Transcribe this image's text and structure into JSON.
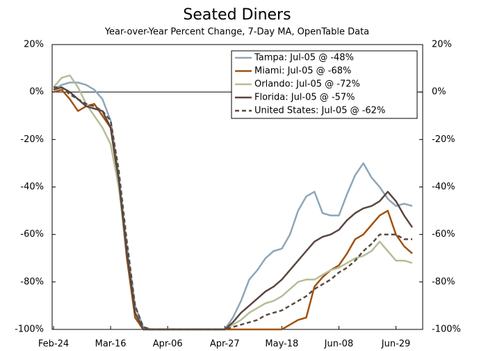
{
  "chart_data": {
    "type": "line",
    "title": "Seated Diners",
    "subtitle": "Year-over-Year Percent Change, 7-Day MA, OpenTable Data",
    "categories": [
      "Feb-24",
      null,
      null,
      null,
      null,
      null,
      null,
      "Mar-16",
      null,
      null,
      null,
      null,
      null,
      null,
      "Apr-06",
      null,
      null,
      null,
      null,
      null,
      null,
      "Apr-27",
      null,
      null,
      null,
      null,
      null,
      null,
      "May-18",
      null,
      null,
      null,
      null,
      null,
      null,
      "Jun-08",
      null,
      null,
      null,
      null,
      null,
      null,
      "Jun-29",
      null,
      null
    ],
    "ylim": [
      -100,
      20
    ],
    "yticks": [
      {
        "value": -100,
        "label": "-100%"
      },
      {
        "value": -80,
        "label": "-80%"
      },
      {
        "value": -60,
        "label": "-60%"
      },
      {
        "value": -40,
        "label": "-40%"
      },
      {
        "value": -20,
        "label": "-20%"
      },
      {
        "value": 0,
        "label": "0%"
      },
      {
        "value": 20,
        "label": "20%"
      }
    ],
    "y2lim": [
      -100,
      20
    ],
    "y2ticks": [
      {
        "value": -100,
        "label": "-100%"
      },
      {
        "value": -80,
        "label": "-80%"
      },
      {
        "value": -60,
        "label": "-60%"
      },
      {
        "value": -40,
        "label": "-40%"
      },
      {
        "value": -20,
        "label": "-20%"
      },
      {
        "value": 0,
        "label": "0%"
      },
      {
        "value": 20,
        "label": "20%"
      }
    ],
    "legend": "upper right",
    "series": [
      {
        "name": "Tampa: Jul-05 @ -48%",
        "color": "#8ea6b8",
        "values": [
          1,
          3,
          4,
          4,
          3,
          1,
          -3,
          -12,
          -35,
          -65,
          -90,
          -99,
          -100,
          -100,
          -100,
          -100,
          -100,
          -100,
          -100,
          -100,
          -100,
          -100,
          -95,
          -88,
          -79,
          -75,
          -70,
          -67,
          -66,
          -60,
          -50,
          -44,
          -42,
          -51,
          -52,
          -52,
          -43,
          -35,
          -30,
          -36,
          -40,
          -45,
          -48,
          -47,
          -48
        ]
      },
      {
        "name": "Miami: Jul-05 @ -68%",
        "color": "#a0520f",
        "values": [
          0,
          1,
          -3,
          -8,
          -6,
          -5,
          -10,
          -15,
          -38,
          -70,
          -95,
          -100,
          -100,
          -100,
          -100,
          -100,
          -100,
          -100,
          -100,
          -100,
          -100,
          -100,
          -100,
          -100,
          -100,
          -100,
          -100,
          -100,
          -100,
          -98,
          -96,
          -95,
          -82,
          -78,
          -75,
          -73,
          -68,
          -62,
          -60,
          -56,
          -52,
          -50,
          -60,
          -65,
          -68
        ]
      },
      {
        "name": "Orlando: Jul-05 @ -72%",
        "color": "#b4bd96",
        "values": [
          2,
          6,
          7,
          2,
          -5,
          -10,
          -15,
          -22,
          -40,
          -68,
          -93,
          -100,
          -100,
          -100,
          -100,
          -100,
          -100,
          -100,
          -100,
          -100,
          -100,
          -100,
          -98,
          -96,
          -93,
          -91,
          -89,
          -88,
          -86,
          -83,
          -80,
          -79,
          -79,
          -77,
          -75,
          -74,
          -72,
          -70,
          -69,
          -67,
          -63,
          -67,
          -71,
          -71,
          -72
        ]
      },
      {
        "name": "Florida: Jul-05 @ -57%",
        "color": "#5a4640",
        "values": [
          1,
          2,
          0,
          -3,
          -6,
          -7,
          -8,
          -15,
          -37,
          -68,
          -93,
          -100,
          -100,
          -100,
          -100,
          -100,
          -100,
          -100,
          -100,
          -100,
          -100,
          -100,
          -97,
          -93,
          -90,
          -87,
          -84,
          -82,
          -79,
          -75,
          -71,
          -67,
          -63,
          -61,
          -60,
          -58,
          -54,
          -51,
          -49,
          -48,
          -46,
          -42,
          -46,
          -52,
          -57
        ]
      },
      {
        "name": "United States: Jul-05 @ -62%",
        "color": "#5a4a3e",
        "dashed": true,
        "values": [
          2,
          2,
          -1,
          -3,
          -5,
          -6,
          -8,
          -12,
          -33,
          -63,
          -90,
          -99,
          -100,
          -100,
          -100,
          -100,
          -100,
          -100,
          -100,
          -100,
          -100,
          -100,
          -99,
          -98,
          -97,
          -96,
          -94,
          -93,
          -92,
          -90,
          -88,
          -86,
          -83,
          -81,
          -79,
          -76,
          -74,
          -71,
          -67,
          -64,
          -60,
          -60,
          -60,
          -62,
          -62
        ]
      }
    ]
  }
}
